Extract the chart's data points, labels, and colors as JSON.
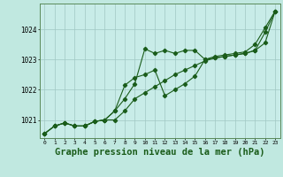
{
  "background_color": "#c0e8e0",
  "plot_bg_color": "#c8ece8",
  "grid_color": "#a0c8c4",
  "line_color": "#1a5c1a",
  "title": "Graphe pression niveau de la mer (hPa)",
  "title_fontsize": 7.5,
  "xlim": [
    -0.5,
    23.5
  ],
  "ylim": [
    1020.4,
    1024.85
  ],
  "yticks": [
    1021,
    1022,
    1023,
    1024
  ],
  "xticks": [
    0,
    1,
    2,
    3,
    4,
    5,
    6,
    7,
    8,
    9,
    10,
    11,
    12,
    13,
    14,
    15,
    16,
    17,
    18,
    19,
    20,
    21,
    22,
    23
  ],
  "series1_x": [
    0,
    1,
    2,
    3,
    4,
    5,
    6,
    7,
    8,
    9,
    10,
    11,
    12,
    13,
    14,
    15,
    16,
    17,
    18,
    19,
    20,
    21,
    22,
    23
  ],
  "series1_y": [
    1020.55,
    1020.8,
    1020.9,
    1020.8,
    1020.8,
    1020.95,
    1021.0,
    1021.3,
    1021.7,
    1022.2,
    1023.35,
    1023.2,
    1023.3,
    1023.2,
    1023.3,
    1023.3,
    1023.0,
    1023.1,
    1023.15,
    1023.2,
    1023.25,
    1023.5,
    1024.05,
    1024.6
  ],
  "series2_x": [
    0,
    1,
    2,
    3,
    4,
    5,
    6,
    7,
    8,
    9,
    10,
    11,
    12,
    13,
    14,
    15,
    16,
    17,
    18,
    19,
    20,
    21,
    22,
    23
  ],
  "series2_y": [
    1020.55,
    1020.8,
    1020.9,
    1020.8,
    1020.8,
    1020.95,
    1021.0,
    1021.0,
    1021.3,
    1021.7,
    1021.9,
    1022.1,
    1022.3,
    1022.5,
    1022.65,
    1022.8,
    1022.95,
    1023.05,
    1023.1,
    1023.15,
    1023.2,
    1023.3,
    1023.55,
    1024.6
  ],
  "series3_x": [
    0,
    1,
    2,
    3,
    4,
    5,
    6,
    7,
    8,
    9,
    10,
    11,
    12,
    13,
    14,
    15,
    16,
    17,
    18,
    19,
    20,
    21,
    22,
    23
  ],
  "series3_y": [
    1020.55,
    1020.8,
    1020.9,
    1020.8,
    1020.8,
    1020.95,
    1021.0,
    1021.3,
    1022.15,
    1022.4,
    1022.5,
    1022.65,
    1021.8,
    1022.0,
    1022.2,
    1022.45,
    1023.0,
    1023.05,
    1023.1,
    1023.15,
    1023.2,
    1023.3,
    1023.9,
    1024.6
  ]
}
